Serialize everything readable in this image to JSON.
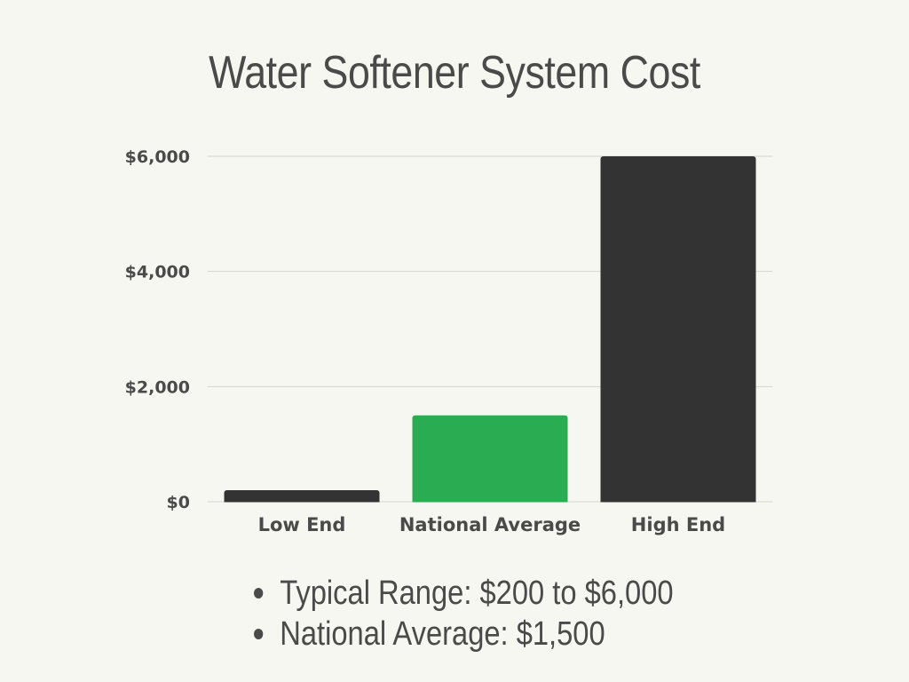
{
  "chart_data": {
    "type": "bar",
    "title": "Water Softener System Cost",
    "categories": [
      "Low End",
      "National Average",
      "High End"
    ],
    "values": [
      200,
      1500,
      6000
    ],
    "bar_colors": [
      "#333333",
      "#2aad52",
      "#333333"
    ],
    "ylim": [
      0,
      6000
    ],
    "yticks": [
      0,
      2000,
      4000,
      6000
    ],
    "ytick_labels": [
      "$0",
      "$2,000",
      "$4,000",
      "$6,000"
    ],
    "grid": true,
    "legend": "none"
  },
  "notes": [
    "Typical Range: $200 to $6,000",
    "National Average: $1,500"
  ],
  "colors": {
    "background": "#f6f7f1",
    "text": "#4a4a4a",
    "gridline": "#d6d6d0",
    "accent_green": "#2aad52",
    "bar_dark": "#333333"
  }
}
